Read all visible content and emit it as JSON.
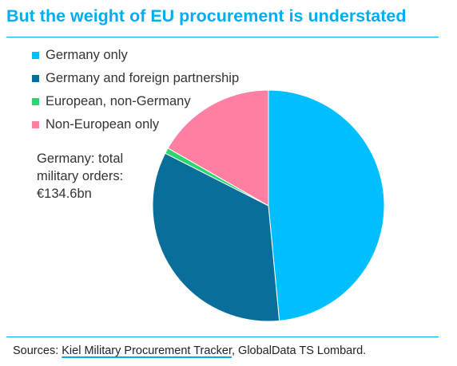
{
  "header": {
    "title": "But the weight of EU procurement is understated"
  },
  "annotation": {
    "lines": [
      "Germany: total",
      "military orders:",
      "€134.6bn"
    ]
  },
  "footer": {
    "prefix": "Sources: ",
    "link_text": "Kiel Military Procurement Tracker",
    "suffix": ", GlobalData TS Lombard."
  },
  "colors": {
    "accent": "#00aeef",
    "slice_border": "#ffffff"
  },
  "chart_data": {
    "type": "pie",
    "title": "But the weight of EU procurement is understated",
    "start": "12 o'clock, clockwise",
    "legend_position": "top-left",
    "series": [
      {
        "name": "Germany only",
        "value": 48.5,
        "color": "#00bfff"
      },
      {
        "name": "Germany and foreign partnership",
        "value": 34.0,
        "color": "#0a6e9a"
      },
      {
        "name": "European, non-Germany",
        "value": 0.8,
        "color": "#2dd56e"
      },
      {
        "name": "Non-European only",
        "value": 16.7,
        "color": "#ff7fa3"
      }
    ]
  }
}
